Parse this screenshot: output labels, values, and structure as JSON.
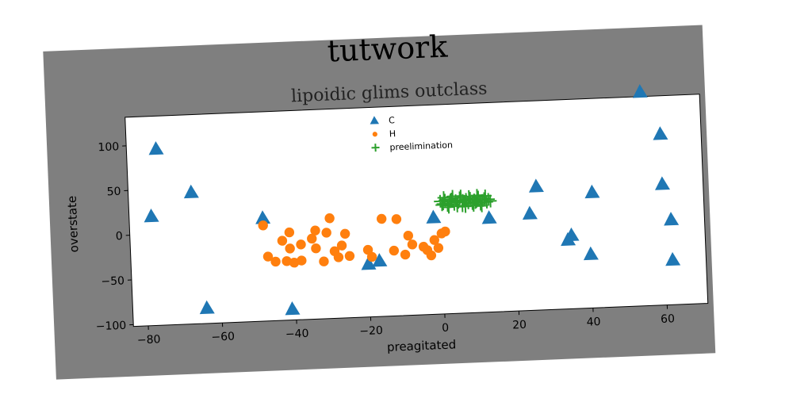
{
  "chart_data": {
    "type": "scatter",
    "title": "tutwork",
    "subtitle": "lipoidic glims outclass",
    "xlabel": "preagitated",
    "ylabel": "overstate",
    "xlim": [
      -84,
      71
    ],
    "ylim": [
      -102,
      132
    ],
    "xticks": [
      -80,
      -60,
      -40,
      -20,
      0,
      20,
      40,
      60
    ],
    "yticks": [
      -100,
      -50,
      0,
      50,
      100
    ],
    "grid": false,
    "legend_position": "top-center",
    "series": [
      {
        "name": "C",
        "marker": "triangle",
        "color": "#1f77b4",
        "points": [
          [
            -76,
            95
          ],
          [
            -67,
            45
          ],
          [
            -78,
            20
          ],
          [
            -48,
            13
          ],
          [
            -64,
            -85
          ],
          [
            -41,
            -90
          ],
          [
            -20,
            -43
          ],
          [
            -17,
            -40
          ],
          [
            -2,
            6
          ],
          [
            13,
            3
          ],
          [
            26,
            36
          ],
          [
            24,
            6
          ],
          [
            35,
            -20
          ],
          [
            34,
            -25
          ],
          [
            41,
            27
          ],
          [
            40,
            -42
          ],
          [
            55,
            137
          ],
          [
            60,
            89
          ],
          [
            60,
            33
          ],
          [
            62,
            -7
          ],
          [
            62,
            -52
          ]
        ]
      },
      {
        "name": "H",
        "marker": "circle",
        "color": "#ff7f0e",
        "points": [
          [
            -48,
            5
          ],
          [
            -47,
            -30
          ],
          [
            -45,
            -36
          ],
          [
            -42,
            -36
          ],
          [
            -43,
            -13
          ],
          [
            -41,
            -22
          ],
          [
            -41,
            -4
          ],
          [
            -40,
            -38
          ],
          [
            -38,
            -18
          ],
          [
            -38,
            -36
          ],
          [
            -35,
            -12
          ],
          [
            -34,
            -3
          ],
          [
            -34,
            -23
          ],
          [
            -32,
            -38
          ],
          [
            -31,
            -6
          ],
          [
            -30,
            10
          ],
          [
            -29,
            -27
          ],
          [
            -28,
            -34
          ],
          [
            -27,
            -21
          ],
          [
            -26,
            -8
          ],
          [
            -25,
            -33
          ],
          [
            -20,
            -27
          ],
          [
            -19,
            -35
          ],
          [
            -16,
            7
          ],
          [
            -13,
            -29
          ],
          [
            -12,
            6
          ],
          [
            -10,
            -34
          ],
          [
            -9,
            -13
          ],
          [
            -8,
            -23
          ],
          [
            -5,
            -26
          ],
          [
            -4,
            -30
          ],
          [
            -3,
            -36
          ],
          [
            -2,
            -19
          ],
          [
            0,
            -12
          ],
          [
            1,
            -10
          ],
          [
            -1,
            -28
          ]
        ]
      },
      {
        "name": "preelimination",
        "marker": "plus",
        "color": "#2ca02c",
        "points": [
          [
            0,
            24
          ],
          [
            0.7,
            21
          ],
          [
            1.3,
            25
          ],
          [
            1.9,
            19
          ],
          [
            2.5,
            23
          ],
          [
            3.1,
            26
          ],
          [
            3.7,
            20
          ],
          [
            4.2,
            24
          ],
          [
            4.8,
            22
          ],
          [
            5.3,
            27
          ],
          [
            5.9,
            18
          ],
          [
            6.4,
            23
          ],
          [
            7,
            25
          ],
          [
            7.5,
            21
          ],
          [
            8.1,
            26
          ],
          [
            8.6,
            20
          ],
          [
            9.2,
            24
          ],
          [
            9.7,
            22
          ],
          [
            10.3,
            27
          ],
          [
            10.8,
            19
          ],
          [
            11.4,
            23
          ],
          [
            11.9,
            25
          ],
          [
            12.5,
            21
          ],
          [
            13,
            24
          ],
          [
            13.5,
            22
          ],
          [
            1,
            28
          ],
          [
            2.2,
            17
          ],
          [
            3.4,
            29
          ],
          [
            4.5,
            18
          ],
          [
            5.6,
            29
          ],
          [
            6.7,
            17
          ],
          [
            7.8,
            28
          ],
          [
            8.9,
            18
          ],
          [
            10,
            29
          ],
          [
            11.1,
            17
          ],
          [
            12.2,
            28
          ],
          [
            0.4,
            20
          ],
          [
            2.8,
            25
          ],
          [
            6.1,
            24
          ],
          [
            9.4,
            21
          ]
        ]
      }
    ]
  }
}
